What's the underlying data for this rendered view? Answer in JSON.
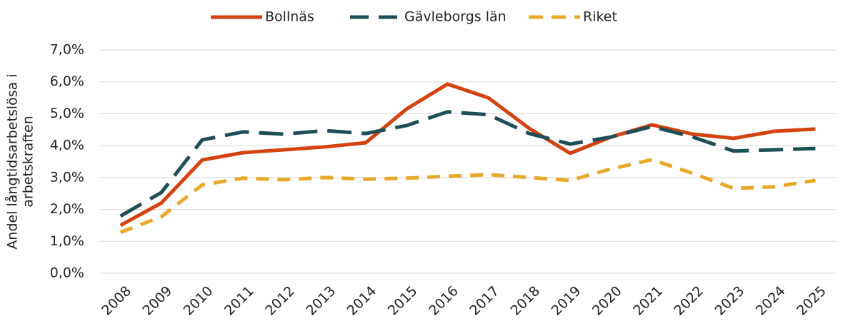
{
  "chart_data": {
    "type": "line",
    "ylabel": [
      "Andel långtidsarbetslösa i",
      "arbetskraften"
    ],
    "categories": [
      "2008",
      "2009",
      "2010",
      "2011",
      "2012",
      "2013",
      "2014",
      "2015",
      "2016",
      "2017",
      "2018",
      "2019",
      "2020",
      "2021",
      "2022",
      "2023",
      "2024",
      "2025"
    ],
    "series": [
      {
        "name": "Bollnäs",
        "color": "#d4420f",
        "dash": "solid",
        "values": [
          1.5,
          2.2,
          3.55,
          3.78,
          3.87,
          3.96,
          4.09,
          5.15,
          5.93,
          5.5,
          4.54,
          3.76,
          4.27,
          4.65,
          4.36,
          4.23,
          4.45,
          4.52
        ]
      },
      {
        "name": "Gävleborgs län",
        "color": "#1f4e57",
        "dash": "long-dash",
        "values": [
          1.79,
          2.53,
          4.18,
          4.43,
          4.36,
          4.47,
          4.38,
          4.63,
          5.06,
          4.97,
          4.38,
          4.05,
          4.27,
          4.6,
          4.27,
          3.83,
          3.87,
          3.91
        ]
      },
      {
        "name": "Riket",
        "color": "#e8a82a",
        "dash": "dash",
        "values": [
          1.28,
          1.77,
          2.77,
          2.98,
          2.93,
          3.0,
          2.95,
          2.98,
          3.04,
          3.09,
          3.0,
          2.91,
          3.27,
          3.56,
          3.13,
          2.66,
          2.71,
          2.91
        ]
      }
    ],
    "ylim": [
      0,
      7
    ],
    "yticks": [
      {
        "value": 0,
        "label": "0,0%"
      },
      {
        "value": 1,
        "label": "1,0%"
      },
      {
        "value": 2,
        "label": "2,0%"
      },
      {
        "value": 3,
        "label": "3,0%"
      },
      {
        "value": 4,
        "label": "4,0%"
      },
      {
        "value": 5,
        "label": "5,0%"
      },
      {
        "value": 6,
        "label": "6,0%"
      },
      {
        "value": 7,
        "label": "7,0%"
      }
    ],
    "grid": true,
    "legend": "top"
  }
}
